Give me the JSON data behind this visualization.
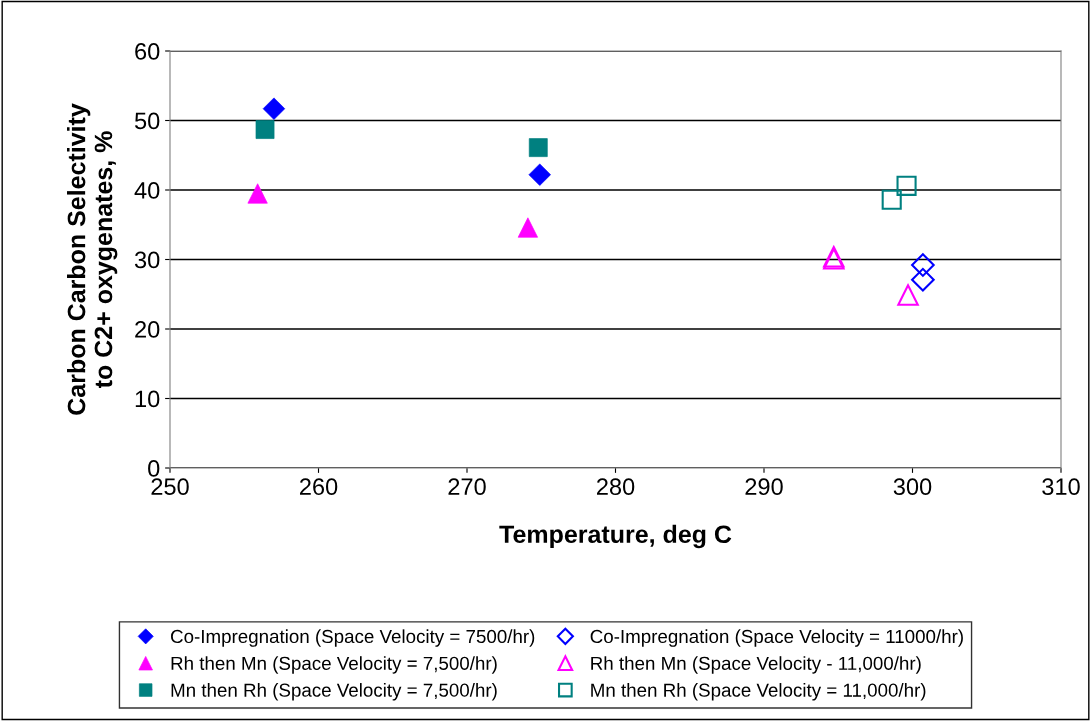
{
  "chart_data": {
    "type": "scatter",
    "xlabel": "Temperature, deg C",
    "ylabel": "Carbon Carbon Selectivity\nto C2+ oxygenates, %",
    "xlim": [
      250,
      310
    ],
    "xticks": [
      250,
      260,
      270,
      280,
      290,
      300,
      310
    ],
    "ylim": [
      0,
      60
    ],
    "yticks": [
      0,
      10,
      20,
      30,
      40,
      50,
      60
    ],
    "grid": "y",
    "legend": "bottom",
    "series": [
      {
        "name": "Co-Impregnation (Space Velocity = 7500/hr)",
        "color": "#0000ff",
        "marker": "diamond",
        "x": [
          257,
          274.9
        ],
        "values": [
          51.7,
          42.2
        ]
      },
      {
        "name": "Co-Impregnation (Space Velocity = 11000/hr)",
        "color": "#0000ff",
        "marker": "diamond",
        "x": [
          300.7,
          300.7
        ],
        "values": [
          29.2,
          27.1
        ]
      },
      {
        "name": "Rh then Mn (Space Velocity = 7,500/hr)",
        "color": "#ff00ff",
        "marker": "triangle",
        "x": [
          255.9,
          274.1
        ],
        "values": [
          39.5,
          34.6
        ]
      },
      {
        "name": "Rh then Mn (Space Velocity - 11,000/hr)",
        "color": "#ff00ff",
        "marker": "triangle",
        "x": [
          294.7,
          294.7,
          299.7
        ],
        "values": [
          30.4,
          30.1,
          24.9
        ]
      },
      {
        "name": "Mn then Rh (Space Velocity = 7,500/hr)",
        "color": "#008080",
        "marker": "square",
        "x": [
          256.4,
          274.8
        ],
        "values": [
          48.7,
          46.1
        ]
      },
      {
        "name": "Mn then Rh (Space Velocity = 11,000/hr)",
        "color": "#008080",
        "marker": "square",
        "x": [
          298.6,
          299.6
        ],
        "values": [
          38.6,
          40.6
        ]
      }
    ]
  }
}
